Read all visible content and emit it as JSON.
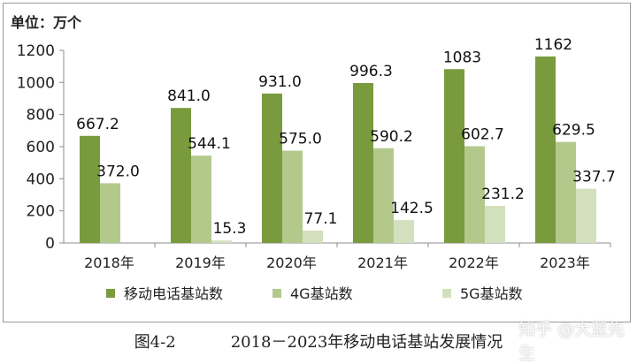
{
  "chart_data": {
    "type": "bar",
    "unit_label": "单位：万个",
    "categories": [
      "2018年",
      "2019年",
      "2020年",
      "2021年",
      "2022年",
      "2023年"
    ],
    "series": [
      {
        "name": "移动电话基站数",
        "values": [
          667.2,
          841.0,
          931.0,
          996.3,
          1083,
          1162
        ],
        "labels": [
          "667.2",
          "841.0",
          "931.0",
          "996.3",
          "1083",
          "1162"
        ],
        "color": "#7a9a3e"
      },
      {
        "name": "4G基站数",
        "values": [
          372.0,
          544.1,
          575.0,
          590.2,
          602.7,
          629.5
        ],
        "labels": [
          "372.0",
          "544.1",
          "575.0",
          "590.2",
          "602.7",
          "629.5"
        ],
        "color": "#b3c98c"
      },
      {
        "name": "5G基站数",
        "values": [
          null,
          15.3,
          77.1,
          142.5,
          231.2,
          337.7
        ],
        "labels": [
          "",
          "15.3",
          "77.1",
          "142.5",
          "231.2",
          "337.7"
        ],
        "color": "#d2e0bd"
      }
    ],
    "ylim": [
      0,
      1200
    ],
    "yticks": [
      0,
      200,
      400,
      600,
      800,
      1000,
      1200
    ],
    "grid": false,
    "legend": "bottom"
  },
  "caption": {
    "label": "图4-2",
    "title": "2018－2023年移动电话基站发展情况"
  },
  "watermark": "知乎 @大蓝先生"
}
